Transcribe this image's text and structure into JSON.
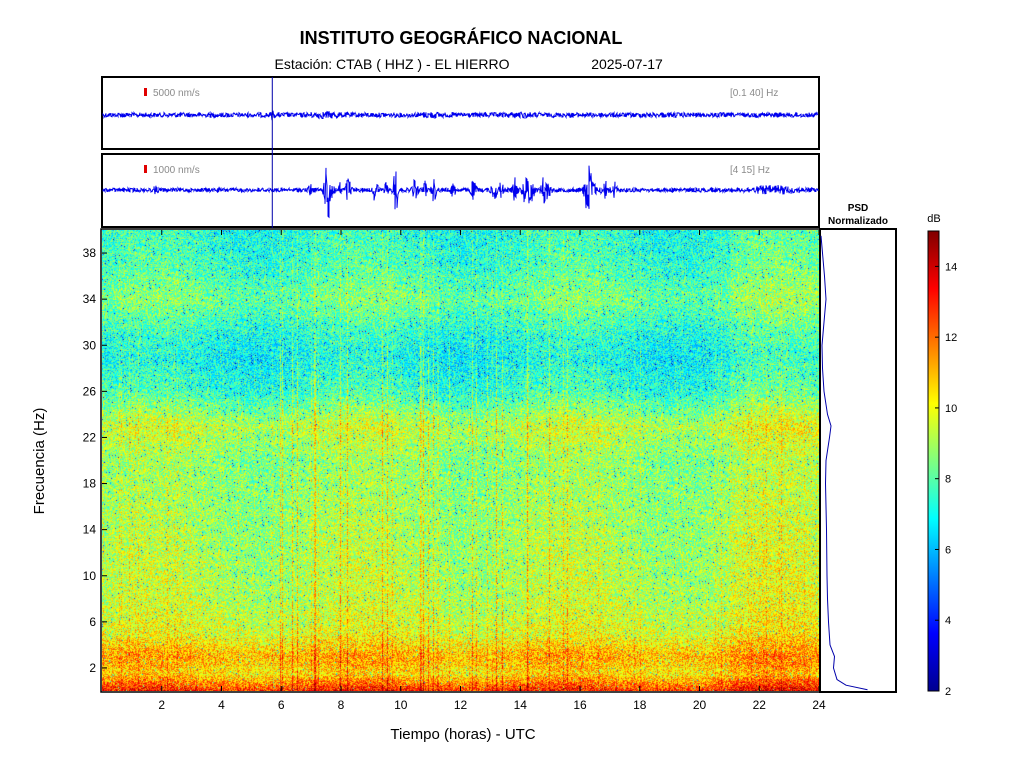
{
  "header": {
    "title": "INSTITUTO GEOGRÁFICO NACIONAL",
    "station_label": "Estación:  CTAB ( HHZ ) - EL HIERRO",
    "date": "2025-07-17"
  },
  "chart_data": [
    {
      "type": "line",
      "panel": "seismogram-broadband",
      "amplitude_scale_label": "5000 nm/s",
      "filter_label": "[0.1 40] Hz",
      "xlim": [
        0,
        24
      ],
      "marker_time_h": 5.7
    },
    {
      "type": "line",
      "panel": "seismogram-filtered",
      "amplitude_scale_label": "1000 nm/s",
      "filter_label": "[4 15] Hz",
      "xlim": [
        0,
        24
      ],
      "marker_time_h": 5.7
    },
    {
      "type": "heatmap",
      "panel": "spectrogram",
      "xlabel": "Tiempo (horas) - UTC",
      "ylabel": "Frecuencia  (Hz)",
      "xlim": [
        0,
        24
      ],
      "ylim": [
        0,
        40
      ],
      "x_ticks": [
        2,
        4,
        6,
        8,
        10,
        12,
        14,
        16,
        18,
        20,
        22,
        24
      ],
      "y_ticks": [
        2,
        6,
        10,
        14,
        18,
        22,
        26,
        30,
        34,
        38
      ],
      "band_levels_db": [
        {
          "f": 0.3,
          "db": 12.5
        },
        {
          "f": 1.5,
          "db": 10.5
        },
        {
          "f": 3,
          "db": 11.2
        },
        {
          "f": 5,
          "db": 9.8
        },
        {
          "f": 8,
          "db": 9.3
        },
        {
          "f": 12,
          "db": 9.1
        },
        {
          "f": 16,
          "db": 8.9
        },
        {
          "f": 20,
          "db": 8.7
        },
        {
          "f": 23,
          "db": 9.4
        },
        {
          "f": 26,
          "db": 7.6
        },
        {
          "f": 29,
          "db": 7.0
        },
        {
          "f": 31,
          "db": 7.4
        },
        {
          "f": 34,
          "db": 8.4
        },
        {
          "f": 37,
          "db": 7.7
        },
        {
          "f": 40,
          "db": 7.4
        }
      ],
      "colorbar": {
        "label": "dB",
        "range": [
          2,
          15
        ],
        "ticks": [
          2,
          4,
          6,
          8,
          10,
          12,
          14
        ]
      }
    },
    {
      "type": "line",
      "panel": "psd-normalized",
      "title_line1": "PSD",
      "title_line2": "Normalizado",
      "points": [
        {
          "f": 0.1,
          "v": 0.93
        },
        {
          "f": 0.5,
          "v": 0.5
        },
        {
          "f": 1.0,
          "v": 0.32
        },
        {
          "f": 2.0,
          "v": 0.25
        },
        {
          "f": 3.0,
          "v": 0.27
        },
        {
          "f": 4.0,
          "v": 0.18
        },
        {
          "f": 6.0,
          "v": 0.15
        },
        {
          "f": 8.0,
          "v": 0.13
        },
        {
          "f": 10.0,
          "v": 0.12
        },
        {
          "f": 14.0,
          "v": 0.11
        },
        {
          "f": 18.0,
          "v": 0.09
        },
        {
          "f": 20.0,
          "v": 0.1
        },
        {
          "f": 22.0,
          "v": 0.17
        },
        {
          "f": 23.0,
          "v": 0.2
        },
        {
          "f": 24.0,
          "v": 0.13
        },
        {
          "f": 26.0,
          "v": 0.06
        },
        {
          "f": 28.0,
          "v": 0.03
        },
        {
          "f": 30.0,
          "v": 0.02
        },
        {
          "f": 32.0,
          "v": 0.06
        },
        {
          "f": 34.0,
          "v": 0.1
        },
        {
          "f": 36.0,
          "v": 0.07
        },
        {
          "f": 38.0,
          "v": 0.03
        },
        {
          "f": 39.5,
          "v": 0.0
        }
      ]
    }
  ]
}
